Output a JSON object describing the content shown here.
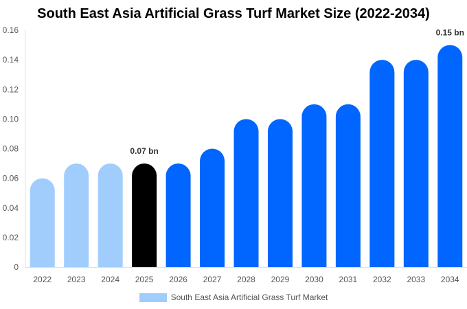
{
  "chart_data": {
    "type": "bar",
    "title": "South East Asia Artificial Grass Turf Market Size (2022-2034)",
    "xlabel": "",
    "ylabel": "",
    "categories": [
      "2022",
      "2023",
      "2024",
      "2025",
      "2026",
      "2027",
      "2028",
      "2029",
      "2030",
      "2031",
      "2032",
      "2033",
      "2034"
    ],
    "series": [
      {
        "name": "South East Asia Artificial Grass Turf Market",
        "values": [
          0.06,
          0.07,
          0.07,
          0.07,
          0.07,
          0.08,
          0.1,
          0.1,
          0.11,
          0.11,
          0.14,
          0.14,
          0.15
        ]
      }
    ],
    "bar_colors": [
      "#a1cdfd",
      "#a1cdfd",
      "#a1cdfd",
      "#000000",
      "#0066ff",
      "#0066ff",
      "#0066ff",
      "#0066ff",
      "#0066ff",
      "#0066ff",
      "#0066ff",
      "#0066ff",
      "#0066ff"
    ],
    "yticks": [
      "0",
      "0.02",
      "0.04",
      "0.06",
      "0.08",
      "0.10",
      "0.12",
      "0.14",
      "0.16"
    ],
    "ylim": [
      0,
      0.16
    ],
    "grid": false,
    "legend_position": "bottom",
    "annotations": [
      {
        "category": "2025",
        "text": "0.07 bn"
      },
      {
        "category": "2034",
        "text": "0.15 bn"
      }
    ]
  },
  "legend": {
    "label": "South East Asia Artificial Grass Turf Market",
    "color": "#a1cdfd"
  }
}
